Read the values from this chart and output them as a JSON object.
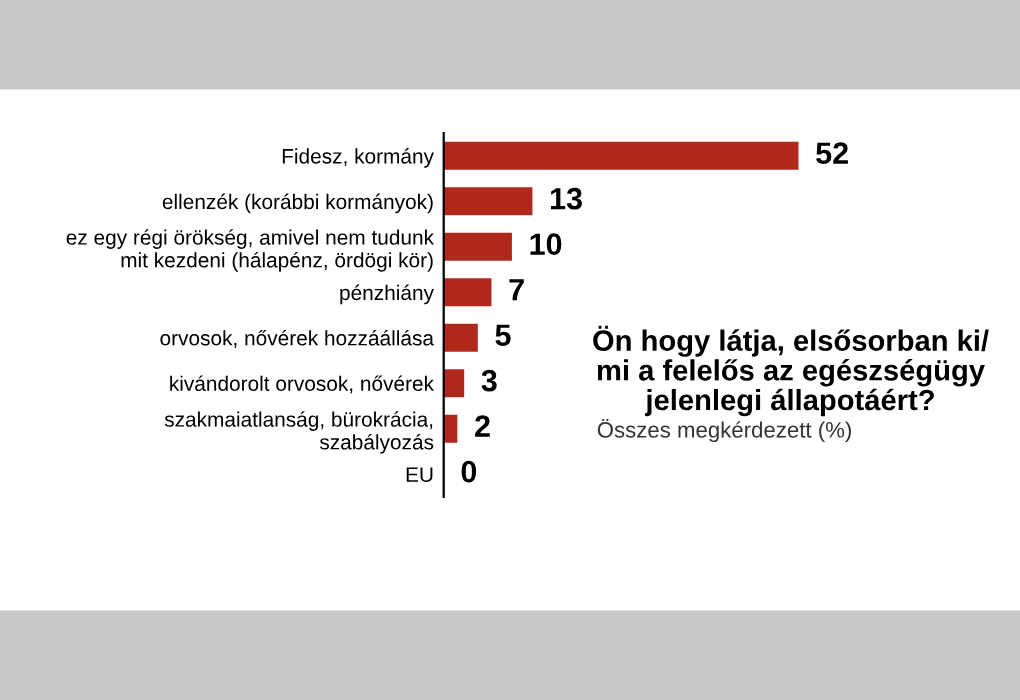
{
  "chart_data": {
    "type": "bar",
    "orientation": "horizontal",
    "title": "Ön hogy látja, elsősorban ki/\nmi a felelős az egészségügy\njelenlegi állapotáért?",
    "subtitle": "Összes megkérdezett (%)",
    "categories": [
      "Fidesz, kormány",
      "ellenzék (korábbi kormányok)",
      "ez egy régi örökség, amivel nem tudunk\nmit kezdeni (hálapénz, ördögi kör)",
      "pénzhiány",
      "orvosok, nővérek hozzáállása",
      "kivándorolt orvosok, nővérek",
      "szakmaiatlanság, bürokrácia,\nszabályozás",
      "EU"
    ],
    "values": [
      52,
      13,
      10,
      7,
      5,
      3,
      2,
      0
    ],
    "color": "#b0281c",
    "data_labels": true,
    "tick_labels": "y",
    "grid": false
  }
}
